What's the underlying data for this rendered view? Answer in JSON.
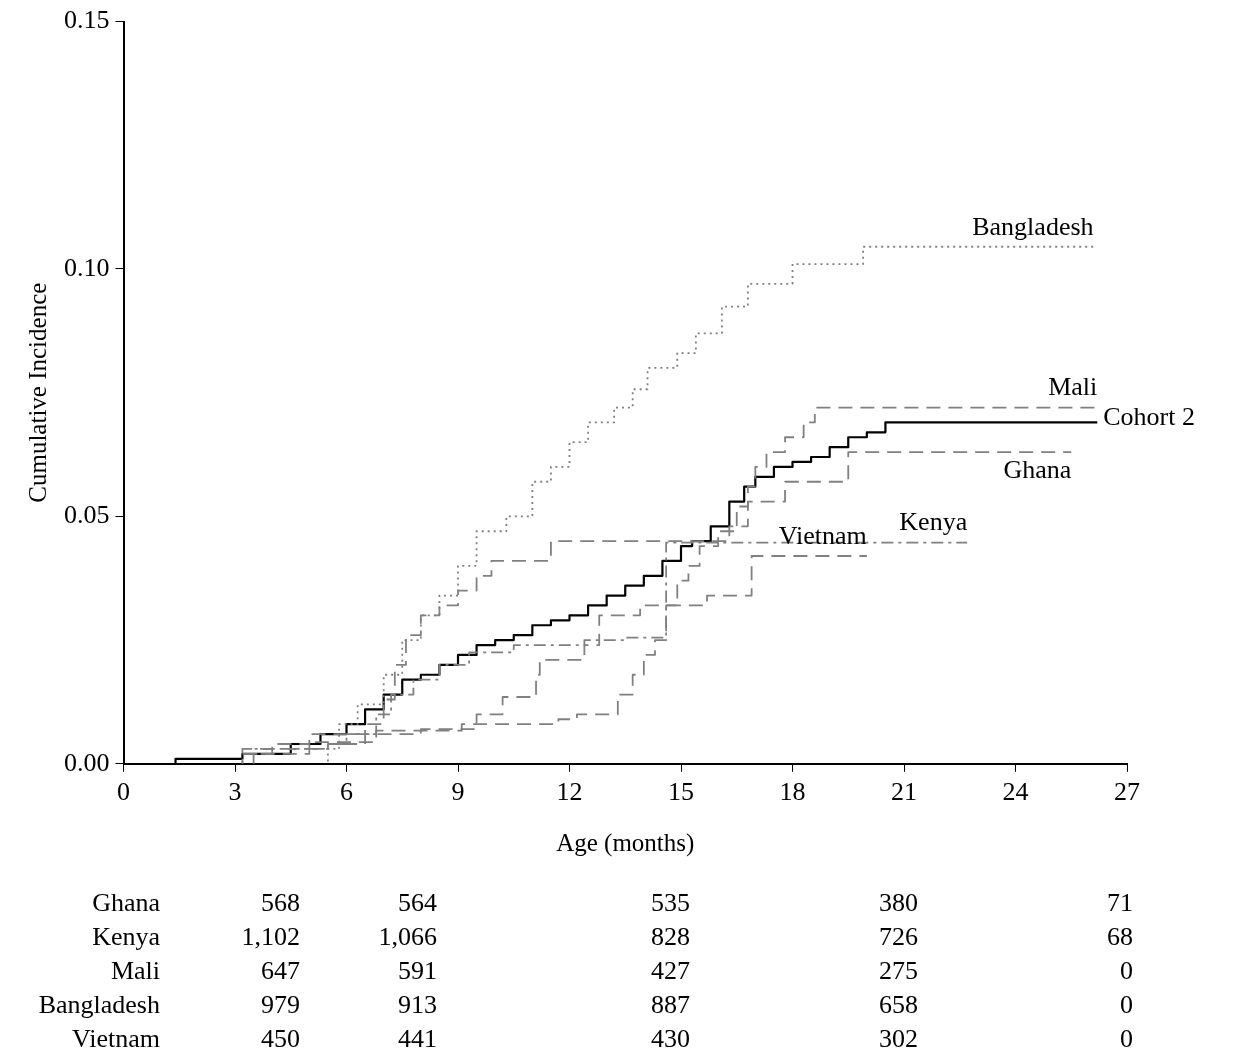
{
  "chart_data": {
    "type": "step",
    "xlabel": "Age (months)",
    "ylabel": "Cumulative Incidence",
    "xlim": [
      0,
      27
    ],
    "xticks": [
      0,
      3,
      6,
      9,
      12,
      15,
      18,
      21,
      24,
      27
    ],
    "ylim": [
      0,
      0.15
    ],
    "yticks": [
      {
        "value": 0,
        "label": "0.00"
      },
      {
        "value": 0.05,
        "label": "0.05"
      },
      {
        "value": 0.1,
        "label": "0.10"
      },
      {
        "value": 0.15,
        "label": "0.15"
      }
    ],
    "grid": false,
    "legend": false,
    "marker": "none",
    "series": [
      {
        "name": "Ghana",
        "color": "#808080",
        "line_style": "dashed",
        "x": [
          3.2,
          5.5,
          6.5,
          7.0,
          7.3,
          7.6,
          8.0,
          8.5,
          9.0,
          9.5,
          9.9,
          11.5,
          16.3,
          16.8,
          17.8,
          19.5,
          20.2,
          25.5
        ],
        "values": [
          0,
          0.003,
          0.004,
          0.008,
          0.013,
          0.02,
          0.026,
          0.03,
          0.032,
          0.035,
          0.038,
          0.041,
          0.045,
          0.048,
          0.053,
          0.057,
          0.063,
          0.063
        ]
      },
      {
        "name": "Kenya",
        "color": "#808080",
        "line_style": "dashdot",
        "x": [
          3.2,
          3.5,
          5.5,
          6.0,
          6.8,
          7.2,
          7.8,
          8.5,
          9.3,
          10.5,
          12.4,
          13.5,
          14.6,
          21.0,
          22.7
        ],
        "values": [
          0,
          0.002,
          0.003,
          0.004,
          0.006,
          0.01,
          0.014,
          0.017,
          0.02,
          0.0225,
          0.024,
          0.025,
          0.0255,
          0.0447,
          0.0447
        ]
      },
      {
        "name": "Mali",
        "color": "#808080",
        "line_style": "dashed",
        "x": [
          3.5,
          5.0,
          6.8,
          9.1,
          11.7,
          12.2,
          13.3,
          13.7,
          14.0,
          14.3,
          14.6,
          14.9,
          15.2,
          15.5,
          16.0,
          16.5,
          16.8,
          17.0,
          17.3,
          17.8,
          18.3,
          18.6,
          18.9,
          26.2
        ],
        "values": [
          0,
          0.002,
          0.0044,
          0.0067,
          0.008,
          0.009,
          0.01,
          0.014,
          0.018,
          0.022,
          0.025,
          0.032,
          0.037,
          0.04,
          0.044,
          0.047,
          0.052,
          0.056,
          0.06,
          0.063,
          0.066,
          0.069,
          0.072,
          0.072
        ]
      },
      {
        "name": "Bangladesh",
        "color": "#808080",
        "line_style": "dotted",
        "x": [
          5.5,
          5.8,
          6.3,
          7.0,
          7.5,
          8.0,
          8.5,
          9.0,
          9.5,
          10.3,
          11.0,
          11.5,
          12.0,
          12.5,
          13.2,
          13.7,
          14.1,
          14.9,
          15.4,
          16.1,
          16.8,
          18.0,
          19.9,
          20.6,
          26.1
        ],
        "values": [
          0,
          0.003,
          0.008,
          0.012,
          0.018,
          0.025,
          0.03,
          0.034,
          0.04,
          0.047,
          0.05,
          0.057,
          0.06,
          0.065,
          0.069,
          0.072,
          0.0757,
          0.08,
          0.083,
          0.087,
          0.0924,
          0.097,
          0.101,
          0.1045,
          0.1045
        ]
      },
      {
        "name": "Vietnam",
        "color": "#808080",
        "line_style": "dashed",
        "x": [
          3.2,
          4.0,
          5.0,
          8.0,
          9.5,
          10.2,
          11.1,
          11.2,
          12.4,
          12.8,
          13.9,
          15.7,
          16.9,
          18.9,
          20.0
        ],
        "values": [
          0,
          0.002,
          0.004,
          0.006,
          0.007,
          0.01,
          0.0135,
          0.018,
          0.021,
          0.024,
          0.03,
          0.032,
          0.034,
          0.042,
          0.042
        ]
      },
      {
        "name": "Cohort 2",
        "color": "#000000",
        "line_style": "solid",
        "x": [
          1.4,
          3.2,
          4.5,
          5.3,
          6.0,
          6.5,
          7.0,
          7.5,
          8.0,
          8.5,
          9.0,
          9.5,
          10.0,
          10.5,
          11.0,
          11.5,
          12.0,
          12.5,
          13.0,
          13.5,
          14.0,
          14.5,
          15.0,
          15.3,
          15.8,
          16.3,
          16.7,
          17.0,
          17.5,
          18.0,
          18.5,
          19.0,
          19.5,
          20.0,
          20.5,
          21.0,
          26.2
        ],
        "values": [
          0,
          0.001,
          0.002,
          0.004,
          0.006,
          0.008,
          0.011,
          0.014,
          0.017,
          0.018,
          0.02,
          0.022,
          0.024,
          0.025,
          0.026,
          0.028,
          0.029,
          0.03,
          0.032,
          0.034,
          0.036,
          0.038,
          0.041,
          0.044,
          0.045,
          0.048,
          0.053,
          0.056,
          0.058,
          0.06,
          0.061,
          0.062,
          0.064,
          0.066,
          0.067,
          0.069,
          0.069
        ]
      }
    ],
    "annotations": [
      "Ghana",
      "568",
      "564",
      "535",
      "380",
      "71",
      "Kenya",
      "1,102",
      "1,066",
      "828",
      "726",
      "68",
      "Mali",
      "647",
      "591",
      "427",
      "275",
      "0",
      "Bangladesh",
      "979",
      "913",
      "887",
      "658",
      "0",
      "Vietnam",
      "450",
      "441",
      "430",
      "302",
      "0"
    ]
  }
}
